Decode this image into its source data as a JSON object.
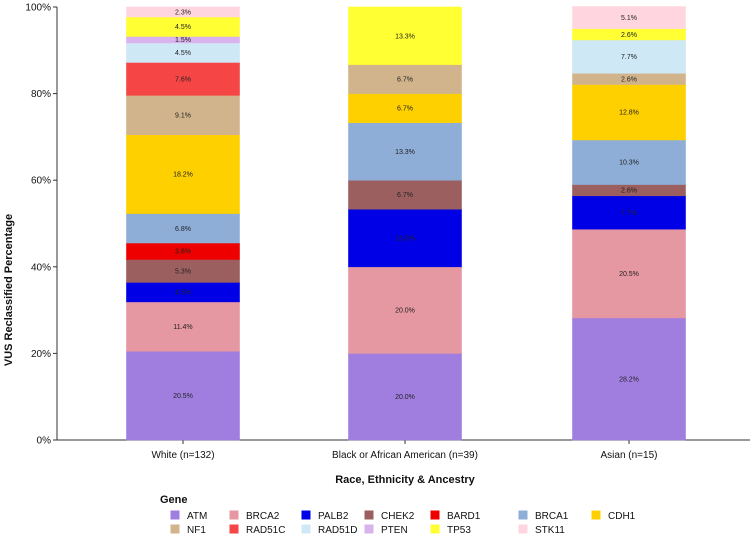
{
  "chart_data": {
    "type": "bar",
    "stacked": true,
    "title": "",
    "xlabel": "Race, Ethnicity & Ancestry",
    "ylabel": "VUS Reclassified Percentage",
    "ylim": [
      0,
      100
    ],
    "yticks": [
      "0%",
      "20%",
      "40%",
      "60%",
      "80%",
      "100%"
    ],
    "categories": [
      "White (n=132)",
      "Black or African American (n=39)",
      "Asian (n=15)"
    ],
    "legend_title": "Gene",
    "series": [
      {
        "name": "ATM",
        "color": "#a07ee0",
        "values": [
          20.5,
          20.0,
          28.2
        ],
        "labels": [
          "20.5%",
          "20.0%",
          "28.2%"
        ]
      },
      {
        "name": "BRCA2",
        "color": "#e597a2",
        "values": [
          11.4,
          20.0,
          20.5
        ],
        "labels": [
          "11.4%",
          "20.0%",
          "20.5%"
        ]
      },
      {
        "name": "PALB2",
        "color": "#0000e6",
        "values": [
          4.5,
          13.3,
          7.7
        ],
        "labels": [
          "4.5%",
          "13.3%",
          "7.7%"
        ]
      },
      {
        "name": "CHEK2",
        "color": "#9b5f5f",
        "values": [
          5.3,
          6.7,
          2.6
        ],
        "labels": [
          "5.3%",
          "6.7%",
          "2.6%"
        ]
      },
      {
        "name": "BARD1",
        "color": "#ee0000",
        "values": [
          3.8,
          0,
          0
        ],
        "labels": [
          "3.8%",
          "",
          ""
        ]
      },
      {
        "name": "BRCA1",
        "color": "#8eaed8",
        "values": [
          6.8,
          13.3,
          10.3
        ],
        "labels": [
          "6.8%",
          "13.3%",
          "10.3%"
        ]
      },
      {
        "name": "CDH1",
        "color": "#ffd000",
        "values": [
          18.2,
          6.7,
          12.8
        ],
        "labels": [
          "18.2%",
          "6.7%",
          "12.8%"
        ]
      },
      {
        "name": "NF1",
        "color": "#d2b48c",
        "values": [
          9.1,
          6.7,
          2.6
        ],
        "labels": [
          "9.1%",
          "6.7%",
          "2.6%"
        ]
      },
      {
        "name": "RAD51C",
        "color": "#f54545",
        "values": [
          7.6,
          0,
          0
        ],
        "labels": [
          "7.6%",
          "",
          ""
        ]
      },
      {
        "name": "RAD51D",
        "color": "#cfe8f6",
        "values": [
          4.5,
          0,
          7.7
        ],
        "labels": [
          "4.5%",
          "",
          "7.7%"
        ]
      },
      {
        "name": "PTEN",
        "color": "#d9b3ee",
        "values": [
          1.5,
          0,
          0
        ],
        "labels": [
          "1.5%",
          "",
          ""
        ]
      },
      {
        "name": "TP53",
        "color": "#ffff33",
        "values": [
          4.5,
          13.3,
          2.6
        ],
        "labels": [
          "4.5%",
          "13.3%",
          "2.6%"
        ]
      },
      {
        "name": "STK11",
        "color": "#ffd6e0",
        "values": [
          2.3,
          0,
          5.1
        ],
        "labels": [
          "2.3%",
          "",
          "5.1%"
        ]
      }
    ]
  }
}
